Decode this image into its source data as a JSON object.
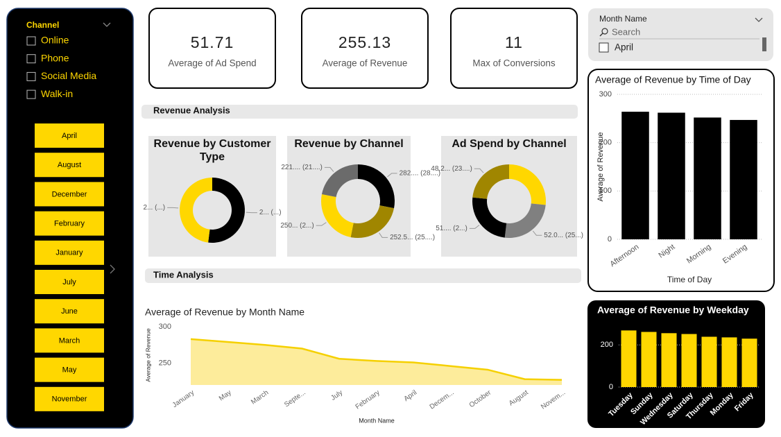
{
  "channel_slicer": {
    "title": "Channel",
    "items": [
      "Online",
      "Phone",
      "Social Media",
      "Walk-in"
    ]
  },
  "month_buttons": [
    "April",
    "August",
    "December",
    "February",
    "January",
    "July",
    "June",
    "March",
    "May",
    "November"
  ],
  "cards": [
    {
      "value": 51.71,
      "label": "Average of Ad Spend"
    },
    {
      "value": 255.13,
      "label": "Average of Revenue"
    },
    {
      "value": 11,
      "label": "Max of Conversions"
    }
  ],
  "sections": [
    "Revenue Analysis",
    "Time Analysis"
  ],
  "month_slicer": {
    "title": "Month Name",
    "search": "Search",
    "items": [
      "April"
    ]
  },
  "chart_data": [
    {
      "type": "donut",
      "title": "Revenue by Customer Type",
      "categories": [
        null,
        null
      ],
      "values": [
        52,
        48
      ],
      "value_labels": [
        "2... (...)",
        "2... (...)"
      ],
      "colors": [
        "#000000",
        "#ffd700"
      ]
    },
    {
      "type": "donut",
      "title": "Revenue by Channel",
      "categories": [
        null,
        null,
        null,
        null
      ],
      "values": [
        282,
        252.5,
        250,
        221
      ],
      "value_labels": [
        "282.... (28....)",
        "252.5... (25....)",
        "250... (2...)",
        "221.... (21....)"
      ],
      "colors": [
        "#000000",
        "#a08600",
        "#ffd700",
        "#6b6b6b"
      ]
    },
    {
      "type": "donut",
      "title": "Ad Spend by Channel",
      "categories": [
        null,
        null,
        null,
        null
      ],
      "values": [
        55,
        52.0,
        51,
        48.2
      ],
      "value_labels": [
        null,
        "52.0... (25...)",
        "51.... (2...)",
        "48.2... (23....)"
      ],
      "colors": [
        "#ffd700",
        "#808080",
        "#000000",
        "#a08600"
      ]
    },
    {
      "type": "bar",
      "title": "Average of Revenue by Time of Day",
      "x_label": "Time of Day",
      "y_label": "Average of Revenue",
      "categories": [
        "Afternoon",
        "Night",
        "Morning",
        "Evening"
      ],
      "values": [
        264,
        262,
        252,
        247
      ],
      "color": "#000000",
      "ylim": [
        0,
        300
      ],
      "yticks": [
        0,
        100,
        200,
        300
      ],
      "grid": true
    },
    {
      "type": "area",
      "title": "Average of Revenue by Month Name",
      "x_label": "Month Name",
      "y_label": "Average of Revenue",
      "categories": [
        "January",
        "May",
        "March",
        "Septe...",
        "July",
        "February",
        "April",
        "Decem...",
        "October",
        "August",
        "Novem..."
      ],
      "values": [
        283,
        279,
        275,
        270,
        256,
        253,
        251,
        246,
        241,
        228,
        227
      ],
      "color": "#f5d000",
      "ylim": [
        220,
        300
      ],
      "yticks": [
        250,
        300
      ],
      "grid": false
    },
    {
      "type": "bar",
      "title": "Average of Revenue by Weekday",
      "categories": [
        "Tuesday",
        "Sunday",
        "Wednesday",
        "Saturday",
        "Thursday",
        "Monday",
        "Friday"
      ],
      "values": [
        269,
        262,
        256,
        252,
        239,
        236,
        230
      ],
      "color": "#ffd700",
      "ylim": [
        0,
        290
      ],
      "yticks": [
        0,
        200
      ],
      "grid": true
    }
  ]
}
